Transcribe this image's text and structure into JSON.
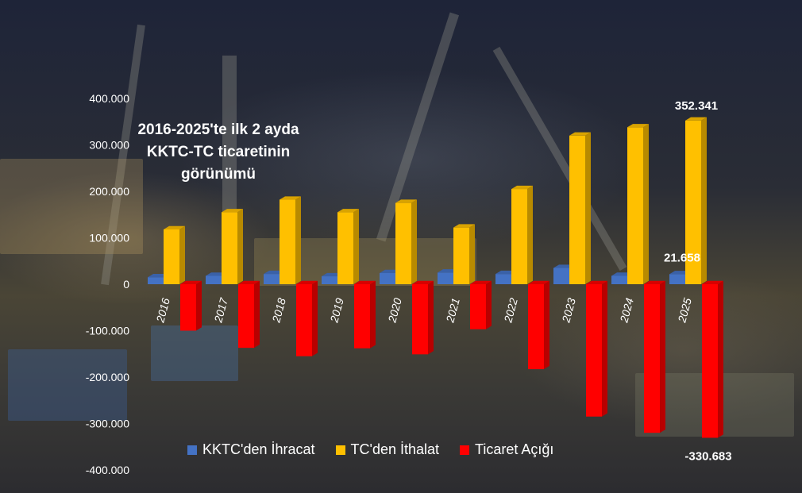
{
  "colors": {
    "export": "#4472c4",
    "import": "#ffc000",
    "deficit": "#ff0000"
  },
  "chart_data": {
    "type": "bar",
    "title": "2016-2025'te ilk 2 ayda KKTC-TC ticaretinin görünümü",
    "title_lines": [
      "2016-2025'te ilk 2 ayda",
      "KKTC-TC ticaretinin",
      "görünümü"
    ],
    "categories": [
      "2016",
      "2017",
      "2018",
      "2019",
      "2020",
      "2021",
      "2022",
      "2023",
      "2024",
      "2025"
    ],
    "ylim": [
      -400000,
      400000
    ],
    "yticks": [
      400000,
      300000,
      200000,
      100000,
      0,
      -100000,
      -200000,
      -300000,
      -400000
    ],
    "ytick_labels": [
      "400.000",
      "300.000",
      "200.000",
      "100.000",
      "0",
      "-100.000",
      "-200.000",
      "-300.000",
      "-400.000"
    ],
    "grid": false,
    "legend_position": "bottom",
    "series": [
      {
        "name": "KKTC'den İhracat",
        "values": [
          15000,
          18000,
          22000,
          17000,
          24000,
          25000,
          22000,
          35000,
          18000,
          21658
        ]
      },
      {
        "name": "TC'den İthalat",
        "values": [
          118000,
          155000,
          182000,
          155000,
          175000,
          122000,
          205000,
          320000,
          338000,
          352341
        ]
      },
      {
        "name": "Ticaret Açığı",
        "values": [
          -100000,
          -137000,
          -155000,
          -138000,
          -151000,
          -97000,
          -183000,
          -285000,
          -320000,
          -330683
        ]
      }
    ],
    "data_labels": [
      {
        "series": 1,
        "category": "2025",
        "text": "352.341"
      },
      {
        "series": 0,
        "category": "2025",
        "text": "21.658"
      },
      {
        "series": 2,
        "category": "2025",
        "text": "-330.683"
      }
    ]
  }
}
